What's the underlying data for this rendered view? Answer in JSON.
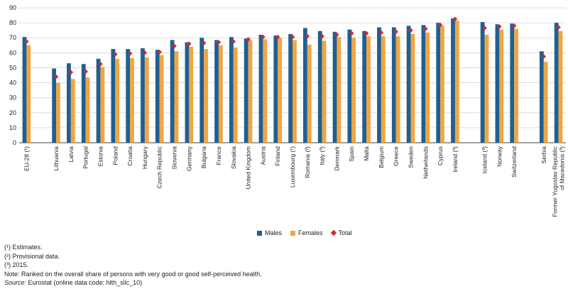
{
  "chart_data": {
    "type": "bar",
    "title": "",
    "xlabel": "",
    "ylabel": "",
    "ylim": [
      0,
      90
    ],
    "yticks": [
      0,
      10,
      20,
      30,
      40,
      50,
      60,
      70,
      80,
      90
    ],
    "grid": true,
    "categories": [
      "EU-28 (¹)",
      "",
      "Lithuania",
      "Latvia",
      "Portugal",
      "Estonia",
      "Poland",
      "Croatia",
      "Hungary",
      "Czech Republic",
      "Slovenia",
      "Germany",
      "Bulgaria",
      "France",
      "Slovakia",
      "United Kingdom",
      "Austria",
      "Finland",
      "Luxembourg (¹)",
      "Romania (²)",
      "Italy (³)",
      "Denmark",
      "Spain",
      "Malta",
      "Belgium",
      "Greece",
      "Sweden",
      "Netherlands",
      "Cyprus",
      "Ireland (³)",
      "",
      "Iceland (³)",
      "Norway",
      "Switzerland",
      "",
      "Serbia",
      "Former Yugoslav Republic of Macedonia (³)"
    ],
    "series": [
      {
        "name": "Males",
        "color": "#1f5f93",
        "values": [
          70.5,
          null,
          49.5,
          53,
          52.5,
          56,
          62.5,
          62.5,
          63,
          62,
          68.5,
          67,
          70,
          68.5,
          70.5,
          69.5,
          72,
          71.5,
          72.5,
          76.5,
          74.5,
          74,
          75.5,
          74.5,
          77,
          77,
          78,
          78.5,
          80,
          83,
          null,
          80.5,
          79,
          79.5,
          null,
          61,
          80
        ]
      },
      {
        "name": "Females",
        "color": "#f0a640",
        "values": [
          65,
          null,
          40,
          42.5,
          43.5,
          50.5,
          56,
          56.5,
          57,
          58.5,
          61,
          64,
          62.5,
          65,
          63.5,
          68.5,
          69,
          70,
          68.5,
          65.5,
          68,
          70.5,
          70,
          71,
          71,
          71,
          72.5,
          73.5,
          78,
          81.5,
          null,
          72,
          75.5,
          76,
          null,
          54,
          74.5
        ]
      },
      {
        "name": "Total",
        "color": "#d12a34",
        "values": [
          67.5,
          null,
          44,
          47,
          47.5,
          52.5,
          59,
          59.5,
          60,
          60.5,
          64.5,
          66,
          66.5,
          67,
          67.5,
          69,
          70.5,
          70.5,
          70.5,
          71,
          71,
          72,
          73,
          73,
          73.5,
          74,
          75,
          76,
          78.5,
          82.5,
          null,
          76.5,
          77.5,
          78,
          null,
          57.5,
          77
        ]
      }
    ]
  },
  "legend": {
    "males": "Males",
    "females": "Females",
    "total": "Total"
  },
  "notes": {
    "n1": "(¹) Estimates.",
    "n2": "(²) Provisional data.",
    "n3": "(³) 2015.",
    "n4": "Note: Ranked on the overall share of persons with very good or good self-perceived health.",
    "source_label": "Source:",
    "source_text": " Eurostat (online data code: hlth_silc_10)"
  }
}
